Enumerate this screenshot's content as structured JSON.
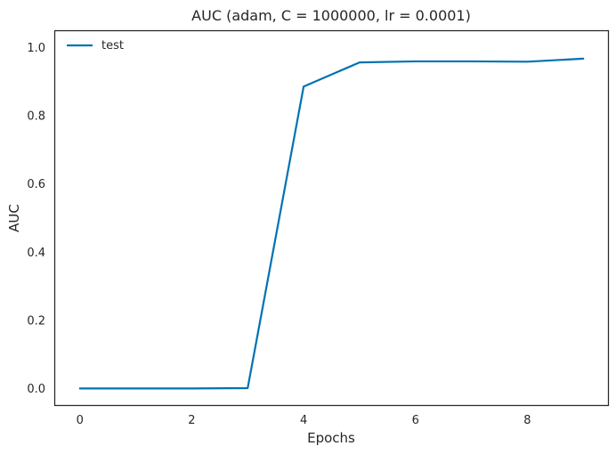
{
  "chart_data": {
    "type": "line",
    "title": "AUC (adam, C = 1000000, lr = 0.0001)",
    "xlabel": "Epochs",
    "ylabel": "AUC",
    "xlim": [
      -0.45,
      9.45
    ],
    "ylim": [
      -0.05,
      1.05
    ],
    "xticks": [
      0,
      2,
      4,
      6,
      8
    ],
    "yticks": [
      0.0,
      0.2,
      0.4,
      0.6,
      0.8,
      1.0
    ],
    "xtick_labels": [
      "0",
      "2",
      "4",
      "6",
      "8"
    ],
    "ytick_labels": [
      "0.0",
      "0.2",
      "0.4",
      "0.6",
      "0.8",
      "1.0"
    ],
    "grid": false,
    "legend_position": "top-left",
    "series": [
      {
        "name": "test",
        "color": "#0072b2",
        "x": [
          0,
          1,
          2,
          3,
          4,
          5,
          6,
          7,
          8,
          9
        ],
        "y": [
          0.0,
          0.0,
          0.0,
          0.001,
          0.886,
          0.957,
          0.96,
          0.96,
          0.959,
          0.968
        ]
      }
    ]
  }
}
